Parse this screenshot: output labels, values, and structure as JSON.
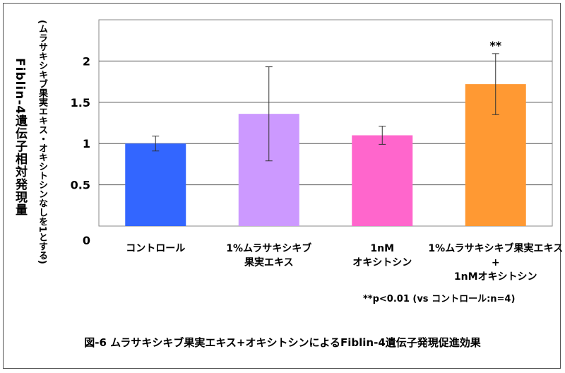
{
  "chart_data": {
    "type": "bar",
    "categories": [
      [
        "コントロール"
      ],
      [
        "1%ムラサキシキブ",
        "果実エキス"
      ],
      [
        "1nM",
        "オキシトシン"
      ],
      [
        "1%ムラサキシキブ果実エキス",
        "+",
        "1nMオキシトシン"
      ]
    ],
    "values": [
      1.0,
      1.36,
      1.1,
      1.72
    ],
    "error": [
      0.09,
      0.57,
      0.11,
      0.37
    ],
    "colors": [
      "#3366ff",
      "#cc99ff",
      "#ff66cc",
      "#ff9933"
    ],
    "annotations": [
      "",
      "",
      "",
      "**"
    ],
    "ylim": [
      0,
      2.5
    ],
    "yticks": [
      "0",
      "0.5",
      "1",
      "1.5",
      "2"
    ],
    "ylabel": "Fiblin-4遺伝子相対発現量",
    "ysublabel": "(ムラサキシキブ果実エキス・オキシトシンなしを1とする)",
    "note": "**p<0.01 (vs コントロール:n=4)",
    "caption": "図-6 ムラサキシキブ果実エキス+オキシトシンによるFiblin-4遺伝子発現促進効果",
    "grid": true
  }
}
